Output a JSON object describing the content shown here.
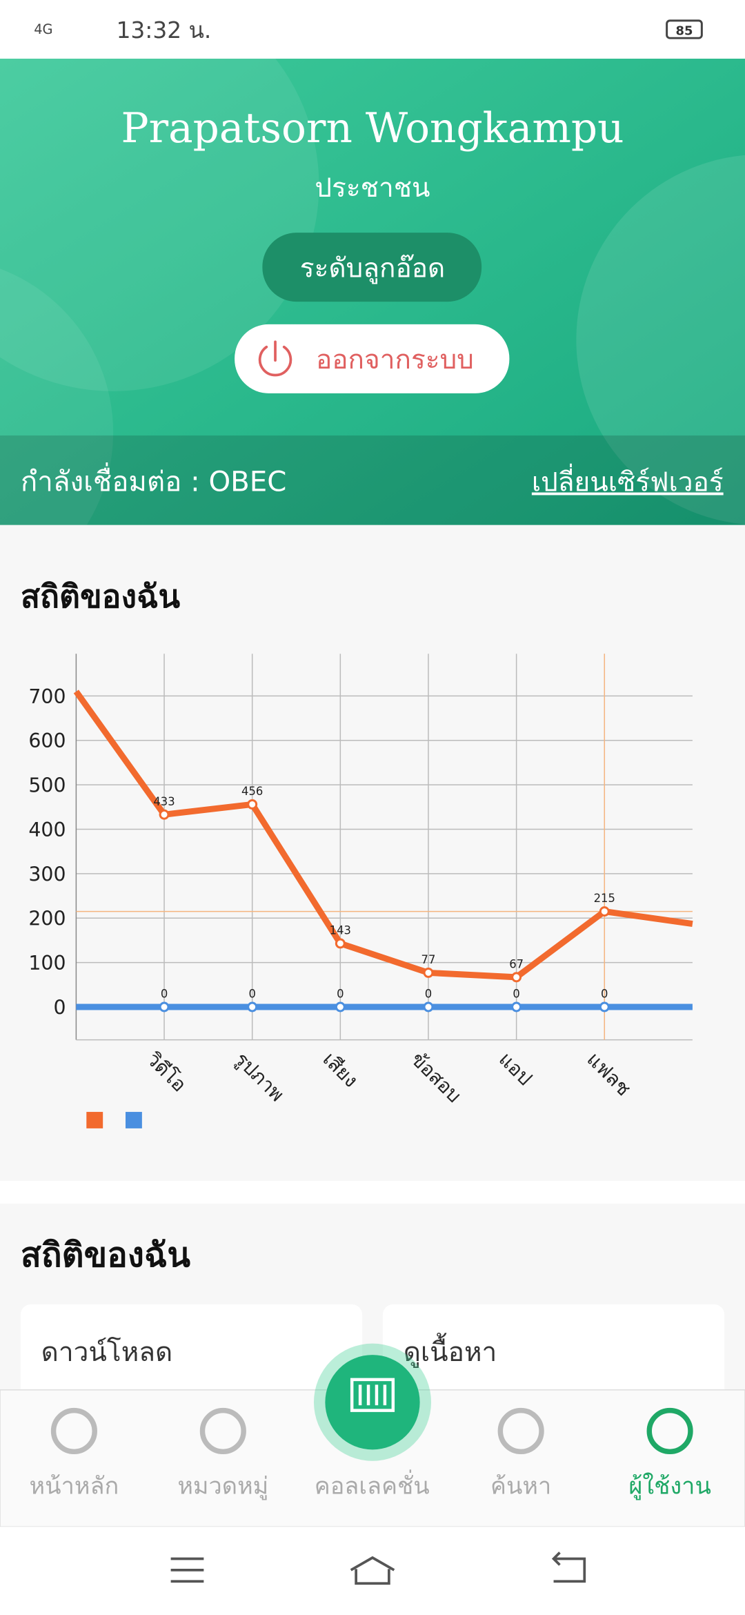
{
  "status_bar": {
    "network": "4G",
    "time": "13:32 น.",
    "battery": 85
  },
  "profile": {
    "name": "Prapatsorn Wongkampu",
    "role": "ประชาชน",
    "level": "ระดับลูกอ๊อด",
    "logout": "ออกจากระบบ"
  },
  "connection": {
    "label": "กำลังเชื่อมต่อ : OBEC",
    "change_server": "เปลี่ยนเซิร์ฟเวอร์"
  },
  "stats_title": "สถิติของฉัน",
  "chart_data": {
    "type": "line",
    "categories": [
      null,
      "วิดีโอ",
      "รูปภาพ",
      "เสียง",
      "ข้อสอบ",
      "แอป",
      "แฟลช",
      null
    ],
    "series": [
      {
        "color": "#f26a2e",
        "values": [
          710,
          433,
          456,
          143,
          77,
          67,
          215,
          187
        ]
      },
      {
        "color": "#4a8fe0",
        "values": [
          0,
          0,
          0,
          0,
          0,
          0,
          0,
          0
        ]
      }
    ],
    "ylim": [
      -74,
      795
    ],
    "yticks": [
      0,
      100,
      200,
      300,
      400,
      500,
      600,
      700
    ],
    "grid": true,
    "highlight_index": 6
  },
  "stats_section": {
    "title": "สถิติของฉัน",
    "cards": [
      "ดาวน์โหลด",
      "ดูเนื้อหา"
    ]
  },
  "nav": [
    {
      "label": "หน้าหลัก",
      "active": false
    },
    {
      "label": "หมวดหมู่",
      "active": false
    },
    {
      "label": "คอลเลคชั่น",
      "active": false
    },
    {
      "label": "ค้นหา",
      "active": false
    },
    {
      "label": "ผู้ใช้งาน",
      "active": true
    }
  ]
}
